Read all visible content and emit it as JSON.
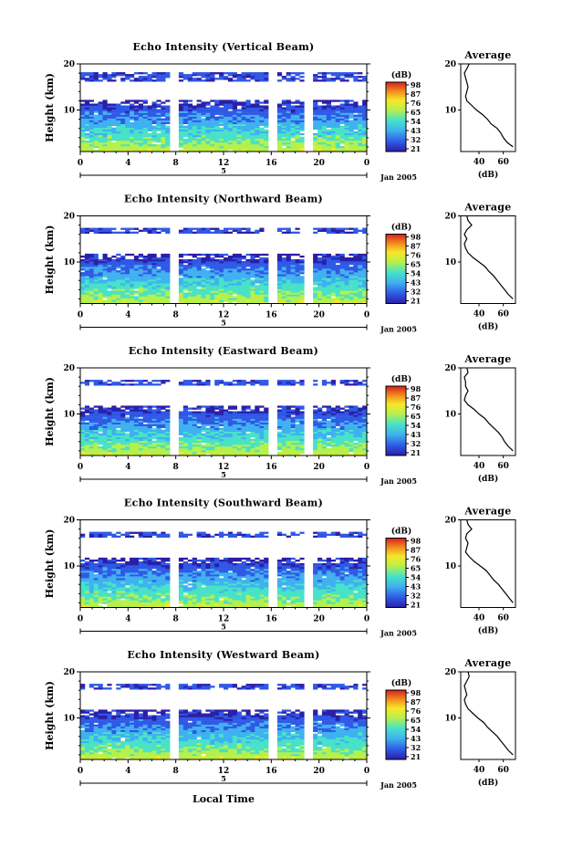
{
  "chart_data": [
    {
      "type": "heatmap",
      "title": "Echo Intensity (Vertical Beam)",
      "ylabel": "Height (km)",
      "yticks": [
        "20",
        "10"
      ],
      "ylim": [
        1,
        20
      ],
      "xticks": [
        "0",
        "4",
        "8",
        "12",
        "16",
        "20",
        "0"
      ],
      "xlim": [
        0,
        24
      ],
      "date_label": "Jan 2005",
      "day_label": "5",
      "colorbar": {
        "unit": "(dB)",
        "ticks": [
          "98",
          "87",
          "76",
          "65",
          "54",
          "43",
          "32",
          "21"
        ]
      },
      "profile": {
        "title": "Average",
        "xlabel": "(dB)",
        "xticks": [
          "40",
          "60"
        ],
        "yticks": [
          "20",
          "10"
        ],
        "ylim": [
          1,
          20
        ],
        "xlim": [
          25,
          70
        ],
        "height_km": [
          2,
          3,
          4,
          5,
          6,
          7,
          8,
          9,
          10,
          11,
          12,
          13,
          14,
          15,
          16,
          17,
          18,
          19,
          20
        ],
        "db": [
          68,
          63,
          60,
          58,
          55,
          50,
          47,
          43,
          38,
          34,
          30,
          29,
          30,
          31,
          30,
          29,
          28,
          30,
          32
        ]
      }
    },
    {
      "type": "heatmap",
      "title": "Echo Intensity (Northward Beam)",
      "ylabel": "Height (km)",
      "yticks": [
        "20",
        "10"
      ],
      "ylim": [
        1,
        20
      ],
      "xticks": [
        "0",
        "4",
        "8",
        "12",
        "16",
        "20",
        "0"
      ],
      "xlim": [
        0,
        24
      ],
      "date_label": "Jan 2005",
      "day_label": "5",
      "colorbar": {
        "unit": "(dB)",
        "ticks": [
          "98",
          "87",
          "76",
          "65",
          "54",
          "43",
          "32",
          "21"
        ]
      },
      "profile": {
        "title": "Average",
        "xlabel": "(dB)",
        "xticks": [
          "40",
          "60"
        ],
        "yticks": [
          "20",
          "10"
        ],
        "ylim": [
          1,
          20
        ],
        "xlim": [
          25,
          70
        ],
        "height_km": [
          2,
          3,
          4,
          5,
          6,
          7,
          8,
          9,
          10,
          11,
          12,
          13,
          14,
          15,
          16,
          17,
          18,
          19,
          20
        ],
        "db": [
          68,
          64,
          61,
          58,
          55,
          52,
          48,
          45,
          40,
          35,
          31,
          29,
          28,
          30,
          28,
          30,
          34,
          31,
          30
        ]
      }
    },
    {
      "type": "heatmap",
      "title": "Echo Intensity (Eastward Beam)",
      "ylabel": "Height (km)",
      "yticks": [
        "20",
        "10"
      ],
      "ylim": [
        1,
        20
      ],
      "xticks": [
        "0",
        "4",
        "8",
        "12",
        "16",
        "20",
        "0"
      ],
      "xlim": [
        0,
        24
      ],
      "date_label": "Jan 2005",
      "day_label": "5",
      "colorbar": {
        "unit": "(dB)",
        "ticks": [
          "98",
          "87",
          "76",
          "65",
          "54",
          "43",
          "32",
          "21"
        ]
      },
      "profile": {
        "title": "Average",
        "xlabel": "(dB)",
        "xticks": [
          "40",
          "60"
        ],
        "yticks": [
          "20",
          "10"
        ],
        "ylim": [
          1,
          20
        ],
        "xlim": [
          25,
          70
        ],
        "height_km": [
          2,
          3,
          4,
          5,
          6,
          7,
          8,
          9,
          10,
          11,
          12,
          13,
          14,
          15,
          16,
          17,
          18,
          19,
          20
        ],
        "db": [
          68,
          64,
          61,
          59,
          56,
          52,
          48,
          45,
          40,
          36,
          31,
          28,
          29,
          31,
          29,
          29,
          28,
          31,
          30
        ]
      }
    },
    {
      "type": "heatmap",
      "title": "Echo Intensity (Southward Beam)",
      "ylabel": "Height (km)",
      "yticks": [
        "20",
        "10"
      ],
      "ylim": [
        1,
        20
      ],
      "xticks": [
        "0",
        "4",
        "8",
        "12",
        "16",
        "20",
        "0"
      ],
      "xlim": [
        0,
        24
      ],
      "date_label": "Jan 2005",
      "day_label": "5",
      "colorbar": {
        "unit": "(dB)",
        "ticks": [
          "98",
          "87",
          "76",
          "65",
          "54",
          "43",
          "32",
          "21"
        ]
      },
      "profile": {
        "title": "Average",
        "xlabel": "(dB)",
        "xticks": [
          "40",
          "60"
        ],
        "yticks": [
          "20",
          "10"
        ],
        "ylim": [
          1,
          20
        ],
        "xlim": [
          25,
          70
        ],
        "height_km": [
          2,
          3,
          4,
          5,
          6,
          7,
          8,
          9,
          10,
          11,
          12,
          13,
          14,
          15,
          16,
          17,
          18,
          19,
          20
        ],
        "db": [
          68,
          65,
          62,
          59,
          56,
          52,
          49,
          46,
          41,
          36,
          32,
          29,
          30,
          31,
          29,
          30,
          34,
          31,
          30
        ]
      }
    },
    {
      "type": "heatmap",
      "title": "Echo Intensity (Westward Beam)",
      "ylabel": "Height (km)",
      "yticks": [
        "20",
        "10"
      ],
      "ylim": [
        1,
        20
      ],
      "xticks": [
        "0",
        "4",
        "8",
        "12",
        "16",
        "20",
        "0"
      ],
      "xlim": [
        0,
        24
      ],
      "date_label": "Jan 2005",
      "day_label": "5",
      "xlabel": "Local Time",
      "colorbar": {
        "unit": "(dB)",
        "ticks": [
          "98",
          "87",
          "76",
          "65",
          "54",
          "43",
          "32",
          "21"
        ]
      },
      "profile": {
        "title": "Average",
        "xlabel": "(dB)",
        "xticks": [
          "40",
          "60"
        ],
        "yticks": [
          "20",
          "10"
        ],
        "ylim": [
          1,
          20
        ],
        "xlim": [
          25,
          70
        ],
        "height_km": [
          2,
          3,
          4,
          5,
          6,
          7,
          8,
          9,
          10,
          11,
          12,
          13,
          14,
          15,
          16,
          17,
          18,
          19,
          20
        ],
        "db": [
          68,
          64,
          61,
          58,
          55,
          51,
          47,
          44,
          39,
          35,
          31,
          29,
          28,
          30,
          29,
          28,
          30,
          32,
          31
        ]
      }
    }
  ],
  "colors": [
    "#2b1fa8",
    "#2f58e6",
    "#3fb1f0",
    "#48e2c8",
    "#b7f04a",
    "#f8e628",
    "#f08a1e",
    "#d81f1f"
  ],
  "gap_hours": [
    8.0,
    16.0,
    19.2
  ]
}
